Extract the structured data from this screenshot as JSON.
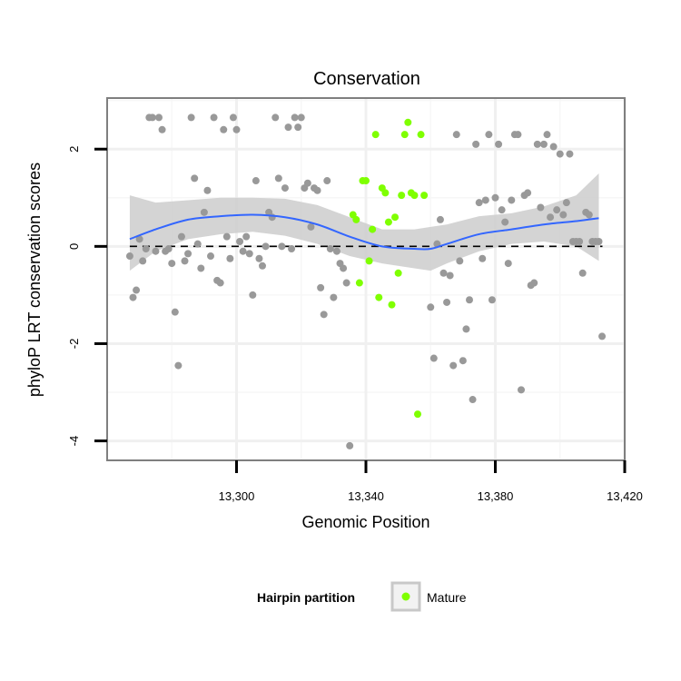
{
  "chart_data": {
    "type": "scatter",
    "title": "Conservation",
    "xlabel": "Genomic Position",
    "ylabel": "phyloP LRT conservation scores",
    "xlim": [
      13260,
      13420
    ],
    "ylim": [
      -4.4,
      3.05
    ],
    "x_ticks": [
      {
        "value": 13300,
        "label": "13,300"
      },
      {
        "value": 13340,
        "label": "13,340"
      },
      {
        "value": 13380,
        "label": "13,380"
      },
      {
        "value": 13420,
        "label": "13,420"
      }
    ],
    "y_ticks": [
      {
        "value": 2,
        "label": "2"
      },
      {
        "value": 0,
        "label": "0"
      },
      {
        "value": -2,
        "label": "-2"
      },
      {
        "value": -4,
        "label": "-4"
      }
    ],
    "grid": true,
    "reference_line": {
      "y": 0,
      "style": "dashed"
    },
    "colors": {
      "other": "#999999",
      "mature": "#7fff00",
      "smooth": "#3366ff",
      "ribbon": "#cccccc",
      "panel_border": "#7f7f7f",
      "grid": "#f0f0f0"
    },
    "legend": {
      "title": "Hairpin partition",
      "entries": [
        "Mature"
      ],
      "position": "bottom"
    },
    "series": [
      {
        "group": "other",
        "points": [
          [
            13267,
            -0.2
          ],
          [
            13268,
            -1.05
          ],
          [
            13269,
            -0.9
          ],
          [
            13270,
            0.15
          ],
          [
            13271,
            -0.3
          ],
          [
            13272,
            -0.05
          ],
          [
            13273,
            2.65
          ],
          [
            13274,
            2.65
          ],
          [
            13275,
            -0.1
          ],
          [
            13276,
            2.65
          ],
          [
            13277,
            2.4
          ],
          [
            13278,
            -0.1
          ],
          [
            13279,
            -0.05
          ],
          [
            13280,
            -0.35
          ],
          [
            13281,
            -1.35
          ],
          [
            13282,
            -2.45
          ],
          [
            13283,
            0.2
          ],
          [
            13284,
            -0.3
          ],
          [
            13285,
            -0.15
          ],
          [
            13286,
            2.65
          ],
          [
            13287,
            1.4
          ],
          [
            13288,
            0.05
          ],
          [
            13289,
            -0.45
          ],
          [
            13290,
            0.7
          ],
          [
            13291,
            1.15
          ],
          [
            13292,
            -0.2
          ],
          [
            13293,
            2.65
          ],
          [
            13294,
            -0.7
          ],
          [
            13295,
            -0.75
          ],
          [
            13296,
            2.4
          ],
          [
            13297,
            0.2
          ],
          [
            13298,
            -0.25
          ],
          [
            13299,
            2.65
          ],
          [
            13300,
            2.4
          ],
          [
            13301,
            0.1
          ],
          [
            13302,
            -0.1
          ],
          [
            13303,
            0.2
          ],
          [
            13304,
            -0.15
          ],
          [
            13305,
            -1.0
          ],
          [
            13306,
            1.35
          ],
          [
            13307,
            -0.25
          ],
          [
            13308,
            -0.4
          ],
          [
            13309,
            0.0
          ],
          [
            13310,
            0.7
          ],
          [
            13311,
            0.6
          ],
          [
            13312,
            2.65
          ],
          [
            13313,
            1.4
          ],
          [
            13314,
            0.0
          ],
          [
            13315,
            1.2
          ],
          [
            13316,
            2.45
          ],
          [
            13317,
            -0.05
          ],
          [
            13318,
            2.65
          ],
          [
            13319,
            2.45
          ],
          [
            13320,
            2.65
          ],
          [
            13321,
            1.2
          ],
          [
            13322,
            1.3
          ],
          [
            13323,
            0.4
          ],
          [
            13324,
            1.2
          ],
          [
            13325,
            1.15
          ],
          [
            13326,
            -0.85
          ],
          [
            13327,
            -1.4
          ],
          [
            13328,
            1.35
          ],
          [
            13329,
            -0.05
          ],
          [
            13330,
            -1.05
          ],
          [
            13331,
            -0.1
          ],
          [
            13332,
            -0.35
          ],
          [
            13333,
            -0.45
          ],
          [
            13334,
            -0.75
          ],
          [
            13335,
            -4.1
          ],
          [
            13360,
            -1.25
          ],
          [
            13361,
            -2.3
          ],
          [
            13362,
            0.05
          ],
          [
            13363,
            0.55
          ],
          [
            13364,
            -0.55
          ],
          [
            13365,
            -1.15
          ],
          [
            13366,
            -0.6
          ],
          [
            13367,
            -2.45
          ],
          [
            13368,
            2.3
          ],
          [
            13369,
            -0.3
          ],
          [
            13370,
            -2.35
          ],
          [
            13371,
            -1.7
          ],
          [
            13372,
            -1.1
          ],
          [
            13373,
            -3.15
          ],
          [
            13374,
            2.1
          ],
          [
            13375,
            0.9
          ],
          [
            13376,
            -0.25
          ],
          [
            13377,
            0.95
          ],
          [
            13378,
            2.3
          ],
          [
            13379,
            -1.1
          ],
          [
            13380,
            1.0
          ],
          [
            13381,
            2.1
          ],
          [
            13382,
            0.75
          ],
          [
            13383,
            0.5
          ],
          [
            13384,
            -0.35
          ],
          [
            13385,
            0.95
          ],
          [
            13386,
            2.3
          ],
          [
            13387,
            2.3
          ],
          [
            13388,
            -2.95
          ],
          [
            13389,
            1.05
          ],
          [
            13390,
            1.1
          ],
          [
            13391,
            -0.8
          ],
          [
            13392,
            -0.75
          ],
          [
            13393,
            2.1
          ],
          [
            13394,
            0.8
          ],
          [
            13395,
            2.1
          ],
          [
            13396,
            2.3
          ],
          [
            13397,
            0.6
          ],
          [
            13398,
            2.05
          ],
          [
            13399,
            0.75
          ],
          [
            13400,
            1.9
          ],
          [
            13401,
            0.65
          ],
          [
            13402,
            0.9
          ],
          [
            13403,
            1.9
          ],
          [
            13404,
            0.1
          ],
          [
            13405,
            0.1
          ],
          [
            13406,
            0.1
          ],
          [
            13407,
            -0.55
          ],
          [
            13408,
            0.7
          ],
          [
            13409,
            0.65
          ],
          [
            13410,
            0.1
          ],
          [
            13411,
            0.1
          ],
          [
            13412,
            0.1
          ],
          [
            13413,
            -1.85
          ]
        ]
      },
      {
        "group": "mature",
        "name": "Mature",
        "points": [
          [
            13336,
            0.65
          ],
          [
            13337,
            0.55
          ],
          [
            13338,
            -0.75
          ],
          [
            13339,
            1.35
          ],
          [
            13340,
            1.35
          ],
          [
            13341,
            -0.3
          ],
          [
            13342,
            0.35
          ],
          [
            13343,
            2.3
          ],
          [
            13344,
            -1.05
          ],
          [
            13345,
            1.2
          ],
          [
            13346,
            1.1
          ],
          [
            13347,
            0.5
          ],
          [
            13348,
            -1.2
          ],
          [
            13349,
            0.6
          ],
          [
            13350,
            -0.55
          ],
          [
            13351,
            1.05
          ],
          [
            13352,
            2.3
          ],
          [
            13353,
            2.55
          ],
          [
            13354,
            1.1
          ],
          [
            13355,
            1.05
          ],
          [
            13356,
            -3.45
          ],
          [
            13357,
            2.3
          ],
          [
            13358,
            1.05
          ]
        ]
      }
    ],
    "smooth": {
      "x": [
        13267,
        13275,
        13285,
        13295,
        13305,
        13315,
        13325,
        13335,
        13345,
        13355,
        13360,
        13365,
        13375,
        13385,
        13395,
        13405,
        13412
      ],
      "y": [
        0.15,
        0.35,
        0.55,
        0.62,
        0.65,
        0.6,
        0.45,
        0.2,
        0.0,
        -0.05,
        -0.05,
        0.05,
        0.25,
        0.35,
        0.45,
        0.52,
        0.58
      ],
      "lower": [
        -0.5,
        -0.1,
        0.15,
        0.25,
        0.3,
        0.22,
        0.05,
        -0.2,
        -0.35,
        -0.45,
        -0.5,
        -0.35,
        -0.1,
        0.05,
        0.1,
        0.0,
        -0.3
      ],
      "upper": [
        1.05,
        0.9,
        0.95,
        1.0,
        1.0,
        0.98,
        0.85,
        0.6,
        0.35,
        0.35,
        0.4,
        0.45,
        0.62,
        0.68,
        0.82,
        1.05,
        1.5
      ]
    }
  }
}
